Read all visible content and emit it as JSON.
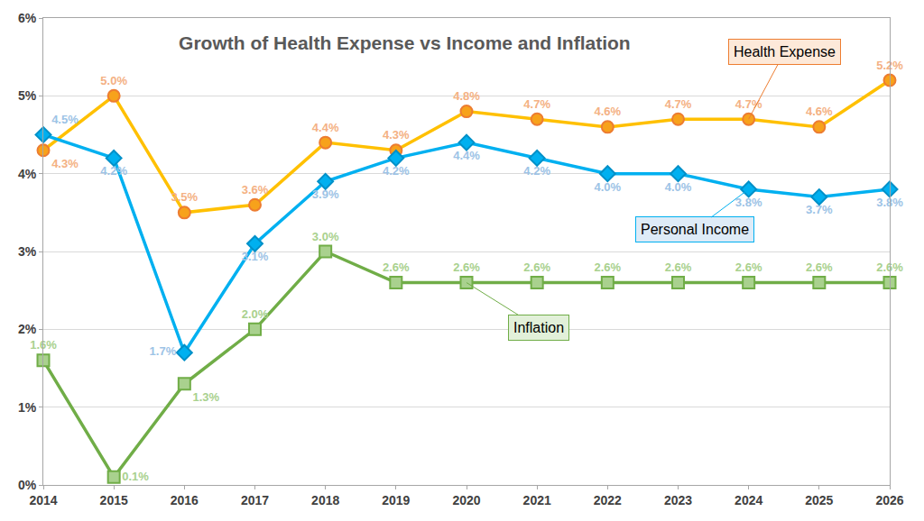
{
  "chart_data": {
    "type": "line",
    "title": "Growth of Health Expense vs Income and Inflation",
    "x": [
      2014,
      2015,
      2016,
      2017,
      2018,
      2019,
      2020,
      2021,
      2022,
      2023,
      2024,
      2025,
      2026
    ],
    "xlim": [
      2014,
      2026
    ],
    "xticks": [
      2014,
      2015,
      2016,
      2017,
      2018,
      2019,
      2020,
      2021,
      2022,
      2023,
      2024,
      2025,
      2026
    ],
    "ylim": [
      0,
      6
    ],
    "yticks": [
      {
        "value": 0,
        "label": "0%"
      },
      {
        "value": 1,
        "label": "1%"
      },
      {
        "value": 2,
        "label": "2%"
      },
      {
        "value": 3,
        "label": "3%"
      },
      {
        "value": 4,
        "label": "4%"
      },
      {
        "value": 5,
        "label": "5%"
      },
      {
        "value": 6,
        "label": "6%"
      }
    ],
    "grid": true,
    "data_labels": true,
    "series": [
      {
        "name": "Health Expense",
        "color": "#FFC000",
        "marker": "circle",
        "line_style": "solid",
        "values": [
          4.3,
          5.0,
          3.5,
          3.6,
          4.4,
          4.3,
          4.8,
          4.7,
          4.6,
          4.7,
          4.7,
          4.6,
          5.2
        ],
        "value_labels": [
          "4.3%",
          "5.0%",
          "3.5%",
          "3.6%",
          "4.4%",
          "4.3%",
          "4.8%",
          "4.7%",
          "4.6%",
          "4.7%",
          "4.7%",
          "4.6%",
          "5.2%"
        ]
      },
      {
        "name": "Personal Income",
        "color": "#00B0F0",
        "marker": "diamond",
        "line_style": "solid",
        "values": [
          4.5,
          4.2,
          1.7,
          3.1,
          3.9,
          4.2,
          4.4,
          4.2,
          4.0,
          4.0,
          3.8,
          3.7,
          3.8
        ],
        "value_labels": [
          "4.5%",
          "4.2%",
          "1.7%",
          "3.1%",
          "3.9%",
          "4.2%",
          "4.4%",
          "4.2%",
          "4.0%",
          "4.0%",
          "3.8%",
          "3.7%",
          "3.8%"
        ]
      },
      {
        "name": "Inflation",
        "color": "#70AD47",
        "marker": "square",
        "line_style": "solid",
        "values": [
          1.6,
          0.1,
          1.3,
          2.0,
          3.0,
          2.6,
          2.6,
          2.6,
          2.6,
          2.6,
          2.6,
          2.6,
          2.6
        ],
        "value_labels": [
          "1.6%",
          "0.1%",
          "1.3%",
          "2.0%",
          "3.0%",
          "2.6%",
          "2.6%",
          "2.6%",
          "2.6%",
          "2.6%",
          "2.6%",
          "2.6%",
          "2.6%"
        ]
      }
    ]
  }
}
